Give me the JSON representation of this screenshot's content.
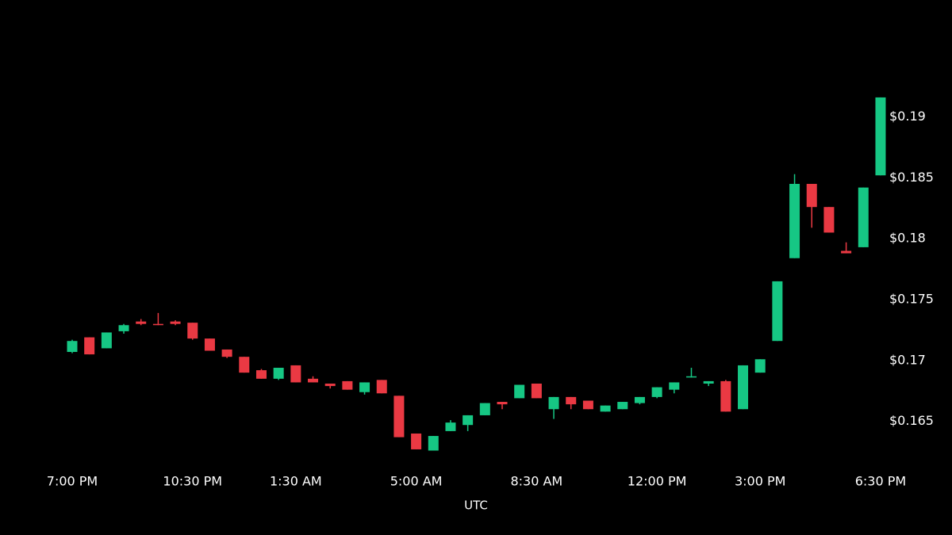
{
  "chart_data": {
    "type": "candlestick",
    "x_label": "UTC",
    "categories": [
      "7:00 PM",
      null,
      null,
      null,
      null,
      null,
      null,
      "10:30 PM",
      null,
      null,
      null,
      null,
      null,
      "1:30 AM",
      null,
      null,
      null,
      null,
      null,
      null,
      "5:00 AM",
      null,
      null,
      null,
      null,
      null,
      null,
      "8:30 AM",
      null,
      null,
      null,
      null,
      null,
      null,
      "12:00 PM",
      null,
      null,
      null,
      null,
      null,
      "3:00 PM",
      null,
      null,
      null,
      null,
      null,
      null,
      "6:30 PM"
    ],
    "open": [
      0.1707,
      0.1719,
      0.171,
      0.1724,
      0.1732,
      0.173,
      0.1732,
      0.1731,
      0.1718,
      0.1709,
      0.1703,
      0.1692,
      0.1685,
      0.1696,
      0.1685,
      0.1681,
      0.1683,
      0.1674,
      0.1684,
      0.1671,
      0.164,
      0.1626,
      0.1642,
      0.1647,
      0.1655,
      0.1666,
      0.1669,
      0.1681,
      0.166,
      0.167,
      0.1667,
      0.1658,
      0.166,
      0.1665,
      0.167,
      0.1676,
      0.1686,
      0.1681,
      0.1683,
      0.166,
      0.169,
      0.1716,
      0.1784,
      0.1845,
      0.1826,
      0.179,
      0.1793,
      0.1852
    ],
    "high": [
      0.1717,
      0.1719,
      0.1723,
      0.173,
      0.1734,
      0.1739,
      0.1733,
      0.1731,
      0.1718,
      0.1709,
      0.1703,
      0.1693,
      0.1694,
      0.1696,
      0.1687,
      0.1681,
      0.1683,
      0.1682,
      0.1684,
      0.1671,
      0.164,
      0.1638,
      0.1651,
      0.1655,
      0.1665,
      0.1666,
      0.168,
      0.1681,
      0.167,
      0.167,
      0.1667,
      0.1663,
      0.1666,
      0.167,
      0.1678,
      0.1682,
      0.1694,
      0.1683,
      0.1684,
      0.1696,
      0.1701,
      0.1765,
      0.1853,
      0.1845,
      0.1826,
      0.1797,
      0.1842,
      0.1916
    ],
    "low": [
      0.1706,
      0.1705,
      0.171,
      0.1722,
      0.1729,
      0.1729,
      0.1729,
      0.1717,
      0.1708,
      0.1702,
      0.169,
      0.1685,
      0.1684,
      0.1682,
      0.1682,
      0.1677,
      0.1676,
      0.1672,
      0.1673,
      0.1637,
      0.1627,
      0.1626,
      0.1642,
      0.1642,
      0.1655,
      0.166,
      0.1669,
      0.1669,
      0.1652,
      0.166,
      0.166,
      0.1658,
      0.166,
      0.1664,
      0.1669,
      0.1673,
      0.1686,
      0.1679,
      0.1658,
      0.166,
      0.169,
      0.1716,
      0.1784,
      0.1809,
      0.1805,
      0.1788,
      0.1793,
      0.1852
    ],
    "close": [
      0.1716,
      0.1705,
      0.1723,
      0.1729,
      0.173,
      0.1729,
      0.173,
      0.1718,
      0.1708,
      0.1703,
      0.169,
      0.1685,
      0.1694,
      0.1682,
      0.1682,
      0.1679,
      0.1676,
      0.1682,
      0.1673,
      0.1637,
      0.1627,
      0.1638,
      0.1649,
      0.1655,
      0.1665,
      0.1664,
      0.168,
      0.1669,
      0.167,
      0.1664,
      0.166,
      0.1663,
      0.1666,
      0.167,
      0.1678,
      0.1682,
      0.1687,
      0.1683,
      0.1658,
      0.1696,
      0.1701,
      0.1765,
      0.1845,
      0.1826,
      0.1805,
      0.1788,
      0.1842,
      0.1916
    ],
    "up_color": "#16c784",
    "down_color": "#ea3943",
    "ylim": [
      0.1612,
      0.1996
    ],
    "yticks": [
      {
        "value": 0.165,
        "label": "$0.165"
      },
      {
        "value": 0.17,
        "label": "$0.17"
      },
      {
        "value": 0.175,
        "label": "$0.175"
      },
      {
        "value": 0.18,
        "label": "$0.18"
      },
      {
        "value": 0.185,
        "label": "$0.185"
      },
      {
        "value": 0.19,
        "label": "$0.19"
      }
    ],
    "grid": false
  }
}
